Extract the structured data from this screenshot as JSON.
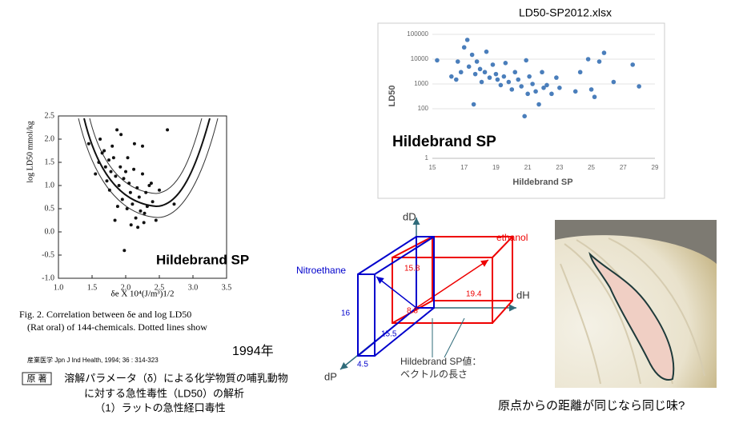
{
  "chart_data": [
    {
      "type": "scatter",
      "y_label": "log LD50 mmol/kg",
      "x_label": "δe X 10⁴(J/m³)1/2",
      "color": "#111111",
      "xlim": [
        1.0,
        3.5
      ],
      "xticks": [
        {
          "value": 1.0,
          "label": "1.0"
        },
        1.5,
        {
          "value": 2.0,
          "label": "2.0"
        },
        2.5,
        {
          "value": 3.0,
          "label": "3.0"
        },
        3.5
      ],
      "ylim": [
        -1.0,
        2.5
      ],
      "yticks": [
        {
          "value": -1.0,
          "label": "-1.0"
        },
        -0.5,
        {
          "value": 0.0,
          "label": "0.0"
        },
        0.5,
        {
          "value": 1.0,
          "label": "1.0"
        },
        1.5,
        {
          "value": 2.0,
          "label": "2.0"
        },
        2.5
      ],
      "x": [
        1.45,
        1.55,
        1.6,
        1.62,
        1.65,
        1.7,
        1.72,
        1.75,
        1.78,
        1.8,
        1.82,
        1.85,
        1.87,
        1.9,
        1.92,
        1.95,
        1.97,
        2.0,
        2.02,
        2.05,
        2.07,
        2.1,
        2.12,
        2.15,
        2.17,
        2.2,
        2.22,
        2.25,
        2.27,
        2.3,
        2.32,
        2.35,
        2.4,
        2.45,
        2.5,
        1.68,
        1.76,
        1.84,
        1.93,
        2.03,
        2.13,
        2.18,
        2.28,
        2.38,
        1.98,
        2.08,
        2.25,
        2.62,
        2.72,
        1.88
      ],
      "values": [
        1.9,
        1.25,
        1.5,
        2.0,
        1.7,
        1.4,
        1.1,
        1.55,
        1.3,
        1.85,
        1.6,
        1.2,
        2.2,
        1.0,
        1.4,
        0.7,
        1.15,
        1.3,
        0.5,
        1.05,
        0.85,
        0.6,
        1.35,
        0.3,
        0.95,
        0.75,
        0.45,
        1.25,
        0.2,
        0.85,
        0.55,
        1.0,
        0.65,
        0.25,
        0.9,
        1.75,
        0.9,
        0.25,
        2.1,
        1.6,
        1.9,
        0.1,
        0.4,
        1.05,
        -0.4,
        0.15,
        1.85,
        2.2,
        0.6,
        0.55
      ],
      "annotation": "Hildebrand SP",
      "caption1": "Fig. 2.   Correlation between δe and log LD50",
      "caption2": "(Rat oral) of 144-chemicals. Dotted lines show"
    },
    {
      "type": "scatter",
      "title": "LD50-SP2012.xlsx",
      "y_label": "LD50",
      "x_label": "Hildebrand SP",
      "color": "#4a7ebb",
      "log_y": true,
      "grid": true,
      "xlim": [
        15,
        29
      ],
      "xticks": [
        15,
        17,
        19,
        21,
        23,
        25,
        27,
        29
      ],
      "ylim": [
        1,
        100000
      ],
      "yticks": [
        1,
        100,
        1000,
        10000,
        100000
      ],
      "x": [
        15.3,
        16.2,
        16.5,
        16.6,
        16.8,
        17.0,
        17.2,
        17.3,
        17.5,
        17.6,
        17.7,
        17.8,
        18.0,
        18.1,
        18.3,
        18.4,
        18.6,
        18.8,
        19.0,
        19.1,
        19.3,
        19.5,
        19.6,
        19.8,
        20.0,
        20.2,
        20.4,
        20.6,
        20.8,
        20.9,
        21.0,
        21.1,
        21.3,
        21.5,
        21.7,
        21.9,
        22.0,
        22.2,
        22.5,
        22.8,
        23.0,
        24.0,
        24.3,
        24.8,
        25.0,
        25.2,
        25.5,
        25.8,
        26.4,
        27.6,
        28.0
      ],
      "values": [
        9000,
        2000,
        1500,
        8000,
        3000,
        30000,
        60000,
        5000,
        15000,
        150,
        2500,
        8000,
        4000,
        1200,
        3000,
        20000,
        1800,
        6000,
        2500,
        1500,
        900,
        2000,
        7000,
        1200,
        600,
        3000,
        1500,
        800,
        50,
        9000,
        400,
        2000,
        1000,
        500,
        150,
        3000,
        700,
        900,
        400,
        1800,
        700,
        500,
        3000,
        10000,
        600,
        300,
        8000,
        18000,
        1200,
        6000,
        800
      ],
      "annotation": "Hildebrand SP"
    }
  ],
  "slide": {
    "year": "1994年",
    "journal": "産業医学  Jpn J Ind Health, 1994; 36 : 314-323",
    "section": "原 著",
    "paper_title": [
      "溶解パラメータ（δ）による化学物質の哺乳動物",
      "に対する急性毒性（LD50）の解析",
      "（1）ラットの急性経口毒性"
    ],
    "diagram": {
      "dD": "dD",
      "dH": "dH",
      "dP": "dP",
      "ethanol": "ethanol",
      "nitroethane": "Nitroethane",
      "ethanol_dd": "15.8",
      "ethanol_dp": "8.8",
      "ethanol_dh": "19.4",
      "nitro_dd": "16",
      "nitro_dp": "15.5",
      "nitro_dh": "4.5",
      "note1": "Hildebrand SP値：",
      "note2": "ベクトルの長さ"
    },
    "photo_caption": "原点からの距離が同じなら同じ味?"
  }
}
